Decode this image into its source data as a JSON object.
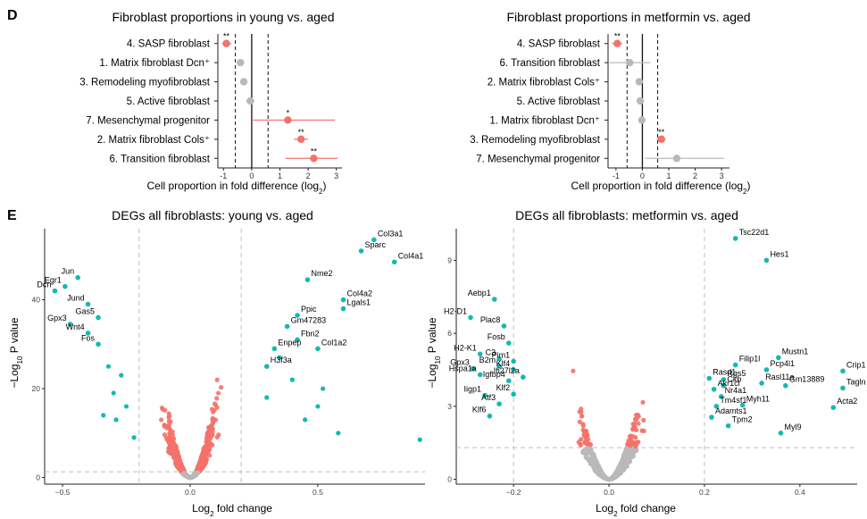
{
  "panels": {
    "d": "D",
    "e": "E"
  },
  "chart_data": [
    {
      "id": "forest-young",
      "type": "scatter",
      "title": "Fibroblast proportions in young vs. aged",
      "xlabel_main": "Cell proportion in fold difference (log",
      "xlabel_sub": "2",
      "xlabel_tail": ")",
      "xlim": [
        -1.2,
        3.2
      ],
      "xticks": [
        -1,
        0,
        1,
        2,
        3
      ],
      "thresholds": [
        -0.58,
        0.58
      ],
      "categories": [
        "4. SASP fibroblast",
        "1. Matrix fibroblast Dcn⁺",
        "3. Remodeling myofibroblast",
        "5. Active fibroblast",
        "7. Mesenchymal progenitor",
        "2. Matrix fibroblast Cols⁺",
        "6. Transition fibroblast"
      ],
      "values": [
        -0.9,
        -0.4,
        -0.28,
        -0.05,
        1.28,
        1.75,
        2.2
      ],
      "ci_low": [
        -1.05,
        -0.5,
        -0.38,
        -0.2,
        0.05,
        1.5,
        1.2
      ],
      "ci_high": [
        -0.72,
        -0.3,
        -0.18,
        0.1,
        2.95,
        2.0,
        3.05
      ],
      "significance": [
        "**",
        "",
        "",
        "",
        "*",
        "**",
        "**"
      ]
    },
    {
      "id": "forest-metformin",
      "type": "scatter",
      "title": "Fibroblast proportions in metformin vs. aged",
      "xlabel_main": "Cell proportion in fold difference (log",
      "xlabel_sub": "2",
      "xlabel_tail": ")",
      "xlim": [
        -1.3,
        3.3
      ],
      "xticks": [
        -1,
        0,
        1,
        2,
        3
      ],
      "thresholds": [
        -0.58,
        0.58
      ],
      "categories": [
        "4. SASP fibroblast",
        "6. Transition fibroblast",
        "2. Matrix fibroblast Cols⁺",
        "5. Active fibroblast",
        "1. Matrix fibroblast Dcn⁺",
        "3. Remodeling myofibroblast",
        "7. Mesenchymal progenitor"
      ],
      "values": [
        -0.95,
        -0.48,
        -0.12,
        -0.08,
        -0.02,
        0.72,
        1.3
      ],
      "ci_low": [
        -1.15,
        -1.25,
        -0.22,
        -0.15,
        -0.08,
        0.55,
        0.1
      ],
      "ci_high": [
        -0.75,
        0.3,
        -0.02,
        0.0,
        0.04,
        0.88,
        3.1
      ],
      "significance": [
        "**",
        "",
        "",
        "",
        "",
        "**",
        ""
      ]
    },
    {
      "id": "volcano-young",
      "type": "scatter",
      "title": "DEGs all fibroblasts: young vs. aged",
      "xlabel_main": "Log",
      "xlabel_sub": "2",
      "xlabel_tail": " fold change",
      "ylabel_main": "−Log",
      "ylabel_sub": "10",
      "ylabel_tail": " P value",
      "xlim": [
        -0.57,
        0.92
      ],
      "ylim": [
        -1.5,
        56
      ],
      "xticks": [
        -0.5,
        0.0,
        0.5
      ],
      "xtick_labels": [
        "−0.5",
        "0.0",
        "0.5"
      ],
      "yticks": [
        0,
        20,
        40
      ],
      "vlines": [
        -0.2,
        0.2
      ],
      "hline": 1.3,
      "labeled_points": [
        {
          "gene": "Col3a1",
          "x": 0.72,
          "y": 53.5
        },
        {
          "gene": "Sparc",
          "x": 0.67,
          "y": 51
        },
        {
          "gene": "Col4a1",
          "x": 0.8,
          "y": 48.5
        },
        {
          "gene": "Nme2",
          "x": 0.46,
          "y": 44.5
        },
        {
          "gene": "Col4a2",
          "x": 0.6,
          "y": 40
        },
        {
          "gene": "Lgals1",
          "x": 0.6,
          "y": 38
        },
        {
          "gene": "Ppic",
          "x": 0.42,
          "y": 36.5
        },
        {
          "gene": "Gm47283",
          "x": 0.38,
          "y": 34
        },
        {
          "gene": "Fbn2",
          "x": 0.42,
          "y": 31
        },
        {
          "gene": "Enpep",
          "x": 0.33,
          "y": 29
        },
        {
          "gene": "Col1a2",
          "x": 0.5,
          "y": 29
        },
        {
          "gene": "H3f3a",
          "x": 0.3,
          "y": 25
        },
        {
          "gene": "Jun",
          "x": -0.44,
          "y": 45
        },
        {
          "gene": "Egr1",
          "x": -0.49,
          "y": 43
        },
        {
          "gene": "Dcn",
          "x": -0.53,
          "y": 42
        },
        {
          "gene": "Jund",
          "x": -0.4,
          "y": 39
        },
        {
          "gene": "Gas5",
          "x": -0.36,
          "y": 36
        },
        {
          "gene": "Gpx3",
          "x": -0.47,
          "y": 34.5
        },
        {
          "gene": "Wnt4",
          "x": -0.4,
          "y": 32.5
        },
        {
          "gene": "Fos",
          "x": -0.36,
          "y": 30
        }
      ],
      "extra_sig_points": [
        {
          "x": 0.9,
          "y": 8.5
        },
        {
          "x": 0.58,
          "y": 10
        },
        {
          "x": 0.5,
          "y": 16
        },
        {
          "x": 0.45,
          "y": 13
        },
        {
          "x": 0.52,
          "y": 20
        },
        {
          "x": 0.4,
          "y": 22
        },
        {
          "x": 0.35,
          "y": 27
        },
        {
          "x": 0.3,
          "y": 18
        },
        {
          "x": -0.32,
          "y": 25
        },
        {
          "x": -0.3,
          "y": 19
        },
        {
          "x": -0.27,
          "y": 23
        },
        {
          "x": -0.34,
          "y": 14
        },
        {
          "x": -0.25,
          "y": 16
        },
        {
          "x": -0.29,
          "y": 13
        },
        {
          "x": -0.22,
          "y": 9
        }
      ]
    },
    {
      "id": "volcano-metformin",
      "type": "scatter",
      "title": "DEGs all fibroblasts: metformin vs. aged",
      "xlabel_main": "Log",
      "xlabel_sub": "2",
      "xlabel_tail": " fold change",
      "xlim": [
        -0.32,
        0.52
      ],
      "ylim": [
        -0.2,
        10.3
      ],
      "xticks": [
        -0.2,
        0.0,
        0.2,
        0.4
      ],
      "xtick_labels": [
        "−0.2",
        "0.0",
        "0.2",
        "0.4"
      ],
      "yticks": [
        0,
        3,
        6,
        9
      ],
      "vlines": [
        -0.2,
        0.2
      ],
      "hline": 1.3,
      "labeled_points": [
        {
          "gene": "Tsc22d1",
          "x": 0.265,
          "y": 9.9
        },
        {
          "gene": "Hes1",
          "x": 0.33,
          "y": 9.0
        },
        {
          "gene": "Aebp1",
          "x": -0.24,
          "y": 7.4
        },
        {
          "gene": "H2-D1",
          "x": -0.29,
          "y": 6.65
        },
        {
          "gene": "Plac8",
          "x": -0.22,
          "y": 6.3
        },
        {
          "gene": "Fosb",
          "x": -0.21,
          "y": 5.6
        },
        {
          "gene": "H2-K1",
          "x": -0.27,
          "y": 5.15
        },
        {
          "gene": "C3",
          "x": -0.23,
          "y": 4.95
        },
        {
          "gene": "Pim1",
          "x": -0.2,
          "y": 4.85
        },
        {
          "gene": "Gpx3",
          "x": -0.285,
          "y": 4.55
        },
        {
          "gene": "B2m",
          "x": -0.23,
          "y": 4.65
        },
        {
          "gene": "Klf4",
          "x": -0.2,
          "y": 4.5
        },
        {
          "gene": "Hspa1a",
          "x": -0.27,
          "y": 4.3
        },
        {
          "gene": "Ifi27l2a",
          "x": -0.18,
          "y": 4.2
        },
        {
          "gene": "Igfbp4",
          "x": -0.21,
          "y": 4.05
        },
        {
          "gene": "Klf2",
          "x": -0.2,
          "y": 3.5
        },
        {
          "gene": "Iigp1",
          "x": -0.26,
          "y": 3.45
        },
        {
          "gene": "Atf3",
          "x": -0.23,
          "y": 3.1
        },
        {
          "gene": "Klf6",
          "x": -0.25,
          "y": 2.6
        },
        {
          "gene": "Mustn1",
          "x": 0.355,
          "y": 5.0
        },
        {
          "gene": "Filip1l",
          "x": 0.265,
          "y": 4.7
        },
        {
          "gene": "Pcp4l1",
          "x": 0.33,
          "y": 4.5
        },
        {
          "gene": "Crip1",
          "x": 0.49,
          "y": 4.45
        },
        {
          "gene": "Rasd1",
          "x": 0.21,
          "y": 4.15
        },
        {
          "gene": "Rgs5",
          "x": 0.24,
          "y": 4.1
        },
        {
          "gene": "Rasl11a",
          "x": 0.32,
          "y": 3.95
        },
        {
          "gene": "Gm13889",
          "x": 0.37,
          "y": 3.85
        },
        {
          "gene": "Tagln",
          "x": 0.49,
          "y": 3.75
        },
        {
          "gene": "Ckb",
          "x": 0.24,
          "y": 3.85
        },
        {
          "gene": "Akr1cl",
          "x": 0.22,
          "y": 3.7
        },
        {
          "gene": "Nr4a1",
          "x": 0.235,
          "y": 3.4
        },
        {
          "gene": "Myh11",
          "x": 0.28,
          "y": 3.05
        },
        {
          "gene": "Tm4sf1",
          "x": 0.225,
          "y": 3.0
        },
        {
          "gene": "Acta2",
          "x": 0.47,
          "y": 2.95
        },
        {
          "gene": "Adamts1",
          "x": 0.215,
          "y": 2.55
        },
        {
          "gene": "Tpm2",
          "x": 0.25,
          "y": 2.2
        },
        {
          "gene": "Myl9",
          "x": 0.36,
          "y": 1.9
        }
      ],
      "extra_sig_points": []
    }
  ],
  "colors": {
    "sig": "#f4726a",
    "ns": "#b9b9b9",
    "teal": "#16b8b2",
    "gridline": "#bdbdbd"
  }
}
